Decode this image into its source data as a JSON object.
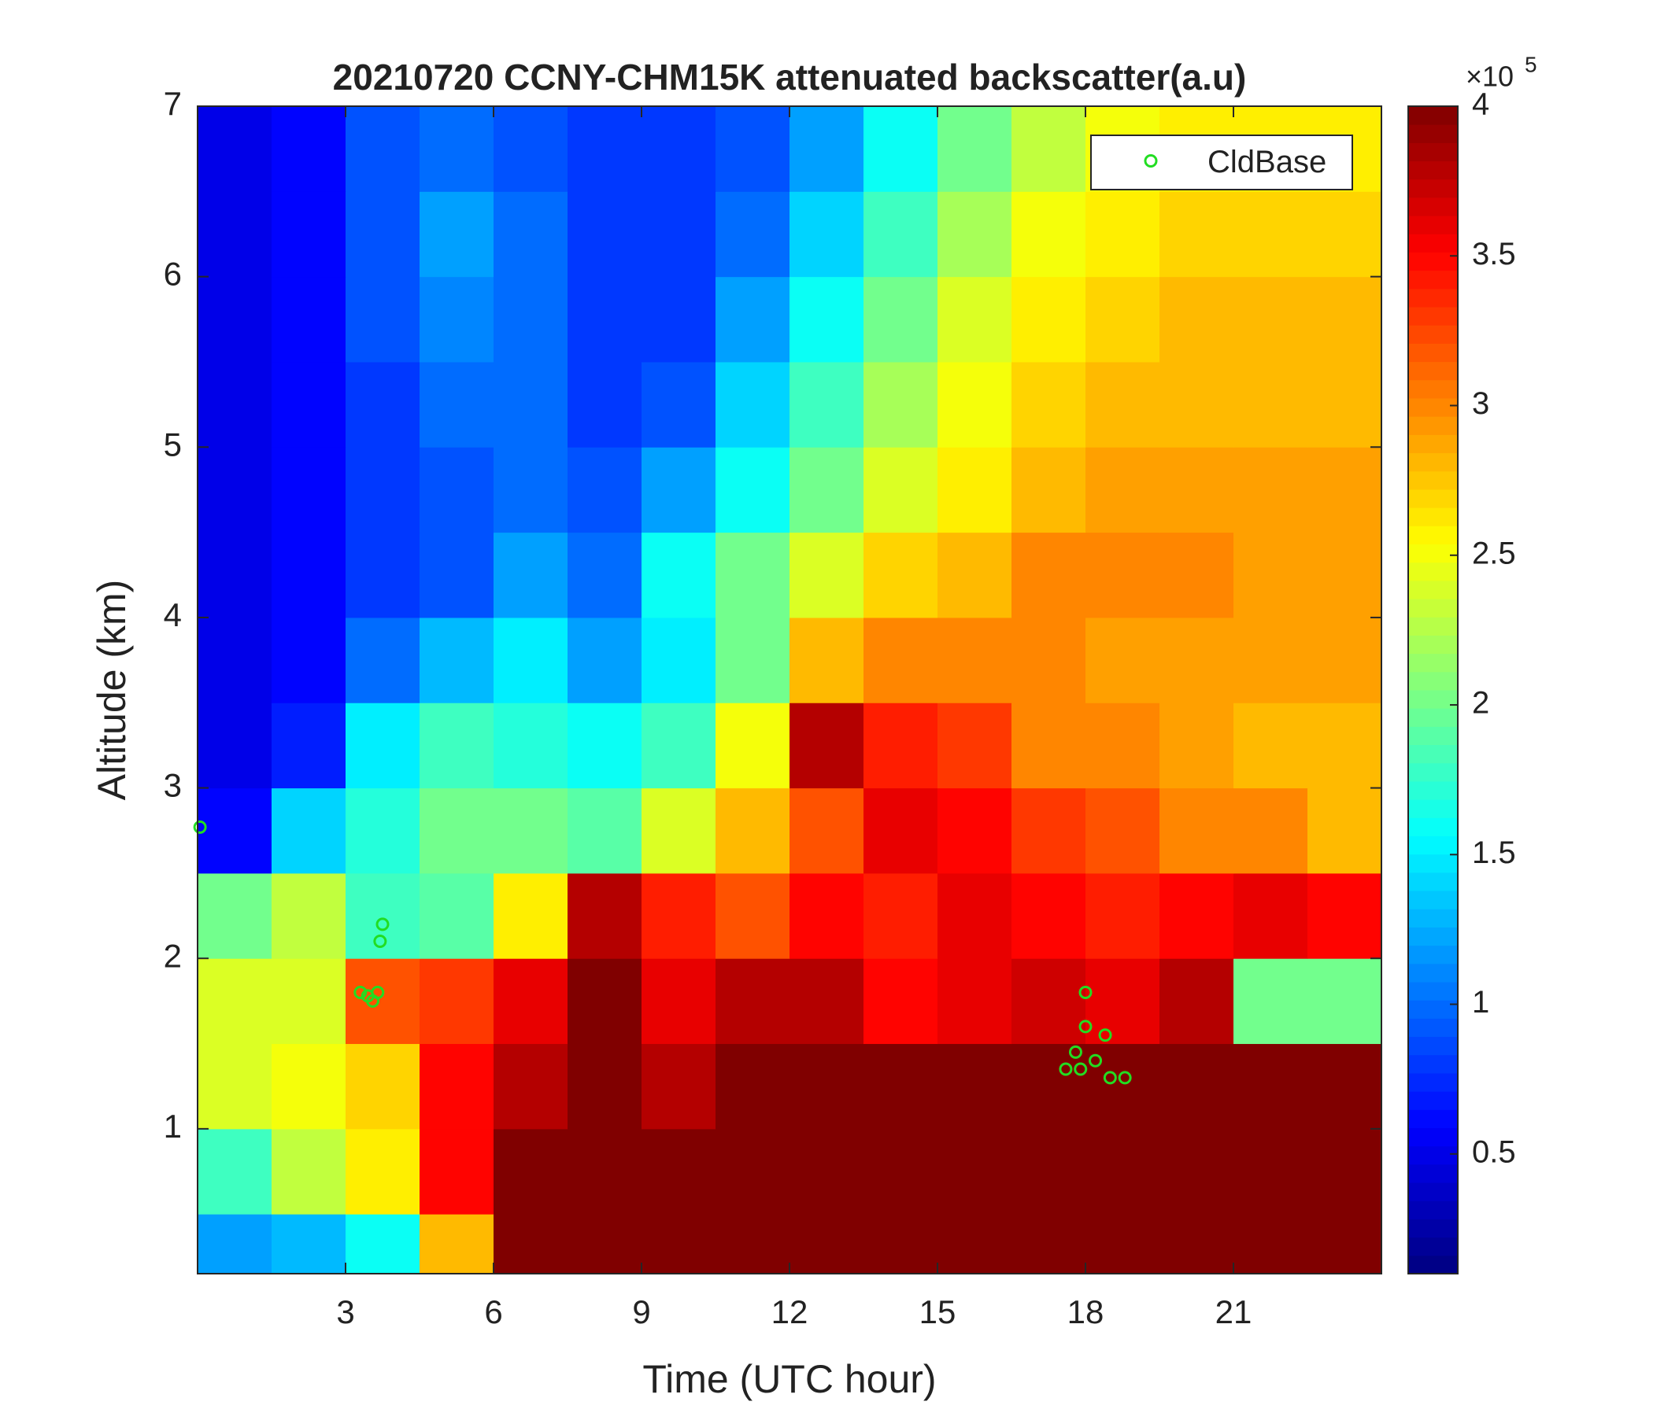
{
  "chart_data": {
    "type": "heatmap",
    "title": "20210720 CCNY-CHM15K attenuated backscatter(a.u)",
    "x_label": "Time (UTC hour)",
    "y_label": "Altitude (km)",
    "xlim": [
      0,
      24
    ],
    "xticks": [
      3,
      6,
      9,
      12,
      15,
      18,
      21
    ],
    "ylim": [
      0.15,
      7
    ],
    "yticks": [
      1,
      2,
      3,
      4,
      5,
      6,
      7
    ],
    "colormap": "jet",
    "clim": [
      0.1,
      4
    ],
    "cticks": [
      0.5,
      1,
      1.5,
      2,
      2.5,
      3,
      3.5,
      4
    ],
    "colorbar_multiplier": "×10",
    "colorbar_exponent": "5",
    "x_bins": [
      0,
      1.5,
      3,
      4.5,
      6,
      7.5,
      9,
      10.5,
      12,
      13.5,
      15,
      16.5,
      18,
      19.5,
      21,
      22.5,
      24
    ],
    "y_bins": [
      0.15,
      0.5,
      1,
      1.5,
      2,
      2.5,
      3,
      3.5,
      4,
      4.5,
      5,
      5.5,
      6,
      6.5,
      7
    ],
    "z": [
      [
        1.2,
        1.3,
        1.6,
        2.8,
        4,
        4,
        4,
        4,
        4,
        4,
        4,
        4,
        4,
        4,
        4,
        4
      ],
      [
        1.8,
        2.3,
        2.6,
        3.5,
        4,
        4,
        4,
        4,
        4,
        4,
        4,
        4,
        4,
        4,
        4,
        4
      ],
      [
        2.4,
        2.5,
        2.7,
        3.5,
        3.8,
        4,
        3.8,
        4,
        4,
        4,
        4,
        4,
        4,
        4,
        4,
        4
      ],
      [
        2.4,
        2.4,
        3.2,
        3.3,
        3.6,
        4,
        3.6,
        3.8,
        3.8,
        3.5,
        3.6,
        3.7,
        3.6,
        3.8,
        2.0,
        2.0
      ],
      [
        2.0,
        2.3,
        1.8,
        1.9,
        2.6,
        3.8,
        3.4,
        3.2,
        3.5,
        3.4,
        3.6,
        3.5,
        3.4,
        3.5,
        3.6,
        3.5
      ],
      [
        0.6,
        1.4,
        1.7,
        2.0,
        2.0,
        1.9,
        2.4,
        2.8,
        3.2,
        3.6,
        3.5,
        3.3,
        3.2,
        3.0,
        3.0,
        2.8
      ],
      [
        0.5,
        0.7,
        1.5,
        1.8,
        1.7,
        1.6,
        1.8,
        2.5,
        3.8,
        3.4,
        3.3,
        3.0,
        3.0,
        2.9,
        2.8,
        2.8
      ],
      [
        0.5,
        0.6,
        1.0,
        1.3,
        1.5,
        1.2,
        1.5,
        2.0,
        2.8,
        3.0,
        3.0,
        3.0,
        2.9,
        2.9,
        2.9,
        2.9
      ],
      [
        0.5,
        0.6,
        0.8,
        0.9,
        1.2,
        1.0,
        1.6,
        2.0,
        2.4,
        2.7,
        2.8,
        3.0,
        3.0,
        3.0,
        2.9,
        2.9
      ],
      [
        0.5,
        0.6,
        0.8,
        0.9,
        1.0,
        0.9,
        1.2,
        1.6,
        2.0,
        2.4,
        2.6,
        2.8,
        2.9,
        2.9,
        2.9,
        2.9
      ],
      [
        0.5,
        0.6,
        0.8,
        1.0,
        1.0,
        0.8,
        0.9,
        1.4,
        1.8,
        2.2,
        2.5,
        2.7,
        2.8,
        2.8,
        2.8,
        2.8
      ],
      [
        0.5,
        0.6,
        0.9,
        1.1,
        1.0,
        0.8,
        0.8,
        1.2,
        1.6,
        2.0,
        2.4,
        2.6,
        2.7,
        2.8,
        2.8,
        2.8
      ],
      [
        0.5,
        0.6,
        0.9,
        1.2,
        1.0,
        0.8,
        0.8,
        1.0,
        1.4,
        1.8,
        2.2,
        2.5,
        2.6,
        2.7,
        2.7,
        2.7
      ],
      [
        0.5,
        0.6,
        0.9,
        1.0,
        0.9,
        0.8,
        0.8,
        0.9,
        1.2,
        1.6,
        2.0,
        2.3,
        2.5,
        2.6,
        2.6,
        2.6
      ]
    ],
    "series": [
      {
        "name": "CldBase",
        "color": "#22dd22",
        "x": [
          0.05,
          3.3,
          3.45,
          3.55,
          3.65,
          3.7,
          3.75,
          17.6,
          17.8,
          17.9,
          18.0,
          18.0,
          18.2,
          18.4,
          18.5,
          18.8
        ],
        "values": [
          2.77,
          1.8,
          1.78,
          1.75,
          1.8,
          2.1,
          2.2,
          1.35,
          1.45,
          1.35,
          1.6,
          1.8,
          1.4,
          1.55,
          1.3,
          1.3
        ]
      }
    ],
    "legend": "upper right"
  }
}
